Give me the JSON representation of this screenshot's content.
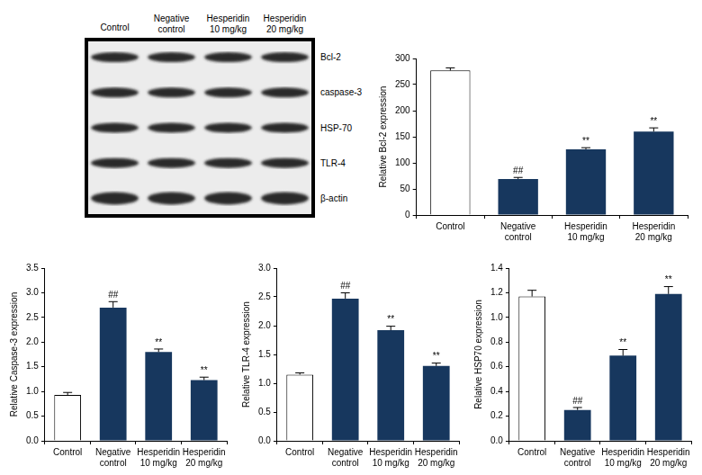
{
  "blot": {
    "columns": [
      "Control",
      [
        "Negative",
        "control"
      ],
      [
        "Hesperidin",
        "10 mg/kg"
      ],
      [
        "Hesperidin",
        "20 mg/kg"
      ]
    ],
    "rows": [
      "Bcl-2",
      "caspase-3",
      "HSP-70",
      "TLR-4",
      "β-actin"
    ]
  },
  "chart_data": [
    {
      "type": "bar",
      "y_label": "Relative Bcl-2 expression",
      "categories": [
        "Control",
        [
          "Negative",
          "control"
        ],
        [
          "Hesperidin",
          "10 mg/kg"
        ],
        [
          "Hesperidin",
          "20 mg/kg"
        ]
      ],
      "values": [
        277,
        69,
        126,
        160
      ],
      "errors": [
        5,
        3,
        3,
        7
      ],
      "annotations": [
        null,
        "##",
        "**",
        "**"
      ],
      "colors": [
        "#ffffff",
        "#17375e",
        "#17375e",
        "#17375e"
      ],
      "ylim": [
        0,
        300
      ],
      "yticks": [
        0,
        50,
        100,
        150,
        200,
        250,
        300
      ],
      "grid": false
    },
    {
      "type": "bar",
      "y_label": "Relative Caspase-3 expression",
      "categories": [
        "Control",
        [
          "Negative",
          "control"
        ],
        [
          "Hesperidin",
          "10 mg/kg"
        ],
        [
          "Hesperidin",
          "20 mg/kg"
        ]
      ],
      "values": [
        0.93,
        2.7,
        1.8,
        1.23
      ],
      "errors": [
        0.05,
        0.12,
        0.06,
        0.06
      ],
      "annotations": [
        null,
        "##",
        "**",
        "**"
      ],
      "colors": [
        "#ffffff",
        "#17375e",
        "#17375e",
        "#17375e"
      ],
      "ylim": [
        0,
        3.5
      ],
      "yticks": [
        {
          "value": 0,
          "label": "0.0"
        },
        0.5,
        {
          "value": 1,
          "label": "1.0"
        },
        1.5,
        {
          "value": 2,
          "label": "2.0"
        },
        2.5,
        {
          "value": 3,
          "label": "3.0"
        },
        3.5
      ],
      "grid": false
    },
    {
      "type": "bar",
      "y_label": "Relative TLR-4 expression",
      "categories": [
        "Control",
        [
          "Negative",
          "control"
        ],
        [
          "Hesperidin",
          "10 mg/kg"
        ],
        [
          "Hesperidin",
          "20 mg/kg"
        ]
      ],
      "values": [
        1.15,
        2.47,
        1.92,
        1.3
      ],
      "errors": [
        0.03,
        0.1,
        0.07,
        0.05
      ],
      "annotations": [
        null,
        "##",
        "**",
        "**"
      ],
      "colors": [
        "#ffffff",
        "#17375e",
        "#17375e",
        "#17375e"
      ],
      "ylim": [
        0,
        3.0
      ],
      "yticks": [
        {
          "value": 0,
          "label": "0.0"
        },
        0.5,
        {
          "value": 1,
          "label": "1.0"
        },
        1.5,
        {
          "value": 2,
          "label": "2.0"
        },
        2.5,
        {
          "value": 3,
          "label": "3.0"
        }
      ],
      "grid": false
    },
    {
      "type": "bar",
      "y_label": "Relative HSP70 expression",
      "categories": [
        "Control",
        [
          "Negative",
          "control"
        ],
        [
          "Hesperidin",
          "10 mg/kg"
        ],
        [
          "Hesperidin",
          "20 mg/kg"
        ]
      ],
      "values": [
        1.17,
        0.25,
        0.69,
        1.19
      ],
      "errors": [
        0.05,
        0.02,
        0.05,
        0.06
      ],
      "annotations": [
        null,
        "##",
        "**",
        "**"
      ],
      "colors": [
        "#ffffff",
        "#17375e",
        "#17375e",
        "#17375e"
      ],
      "ylim": [
        0,
        1.4
      ],
      "yticks": [
        {
          "value": 0,
          "label": "0.0"
        },
        0.2,
        0.4,
        0.6,
        0.8,
        {
          "value": 1,
          "label": "1.0"
        },
        1.2,
        1.4
      ],
      "grid": false
    }
  ]
}
